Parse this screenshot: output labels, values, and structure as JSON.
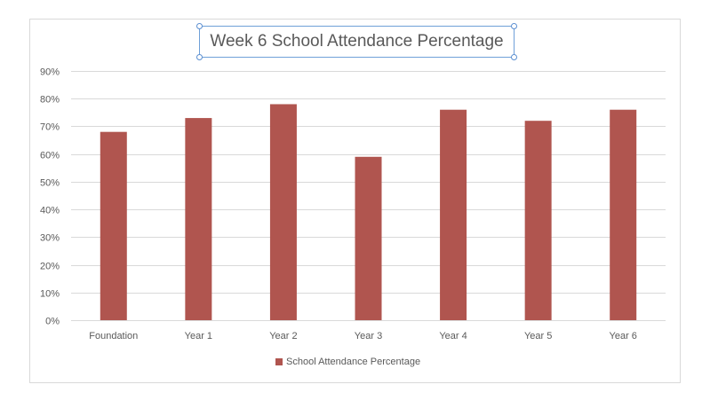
{
  "colors": {
    "bar": "#b0554f",
    "grid": "#d9d9d9",
    "axis_text": "#595959",
    "title_border": "#6fa0d8"
  },
  "chart_data": {
    "type": "bar",
    "title": "Week 6 School Attendance Percentage",
    "xlabel": "",
    "ylabel": "",
    "categories": [
      "Foundation",
      "Year 1",
      "Year 2",
      "Year 3",
      "Year 4",
      "Year 5",
      "Year 6"
    ],
    "series": [
      {
        "name": "School Attendance Percentage",
        "values": [
          68,
          73,
          78,
          59,
          76,
          72,
          76
        ]
      }
    ],
    "ylim": [
      0,
      90
    ],
    "yticks": [
      0,
      10,
      20,
      30,
      40,
      50,
      60,
      70,
      80,
      90
    ],
    "ytick_labels": [
      "0%",
      "10%",
      "20%",
      "30%",
      "40%",
      "50%",
      "60%",
      "70%",
      "80%",
      "90%"
    ],
    "grid": true,
    "legend_position": "bottom"
  }
}
